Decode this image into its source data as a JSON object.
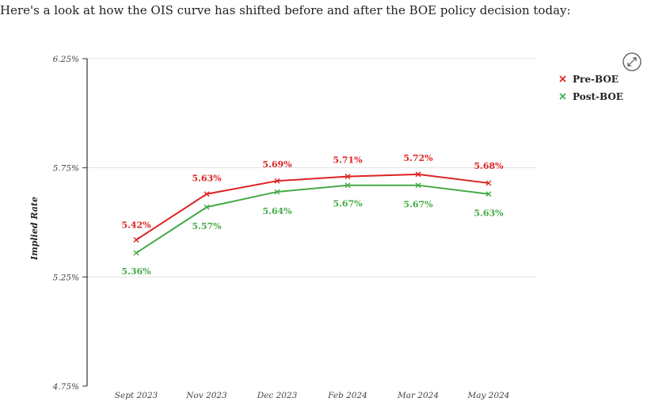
{
  "intro_text": "Here's a look at how the OIS curve has shifted before and after the BOE policy decision today:",
  "expand_icon": "expand-arrows-icon",
  "colors": {
    "pre": "#dd2222",
    "post": "#44aa44",
    "axis": "#333333",
    "grid": "#e3e3e3"
  },
  "chart_data": {
    "type": "line",
    "title": "",
    "xlabel": "",
    "ylabel": "Implied Rate",
    "categories": [
      "Sept 2023",
      "Nov 2023",
      "Dec 2023",
      "Feb 2024",
      "Mar 2024",
      "May 2024"
    ],
    "yticks": [
      4.75,
      5.25,
      5.75,
      6.25
    ],
    "ytick_labels": [
      "4.75%",
      "5.25%",
      "5.75%",
      "6.25%"
    ],
    "ylim": [
      4.75,
      6.25
    ],
    "grid": true,
    "legend": "top-right",
    "series": [
      {
        "name": "Pre-BOE",
        "values": [
          5.42,
          5.63,
          5.69,
          5.71,
          5.72,
          5.68
        ],
        "labels": [
          "5.42%",
          "5.63%",
          "5.69%",
          "5.71%",
          "5.72%",
          "5.68%"
        ]
      },
      {
        "name": "Post-BOE",
        "values": [
          5.36,
          5.57,
          5.64,
          5.67,
          5.67,
          5.63
        ],
        "labels": [
          "5.36%",
          "5.57%",
          "5.64%",
          "5.67%",
          "5.67%",
          "5.63%"
        ]
      }
    ]
  }
}
